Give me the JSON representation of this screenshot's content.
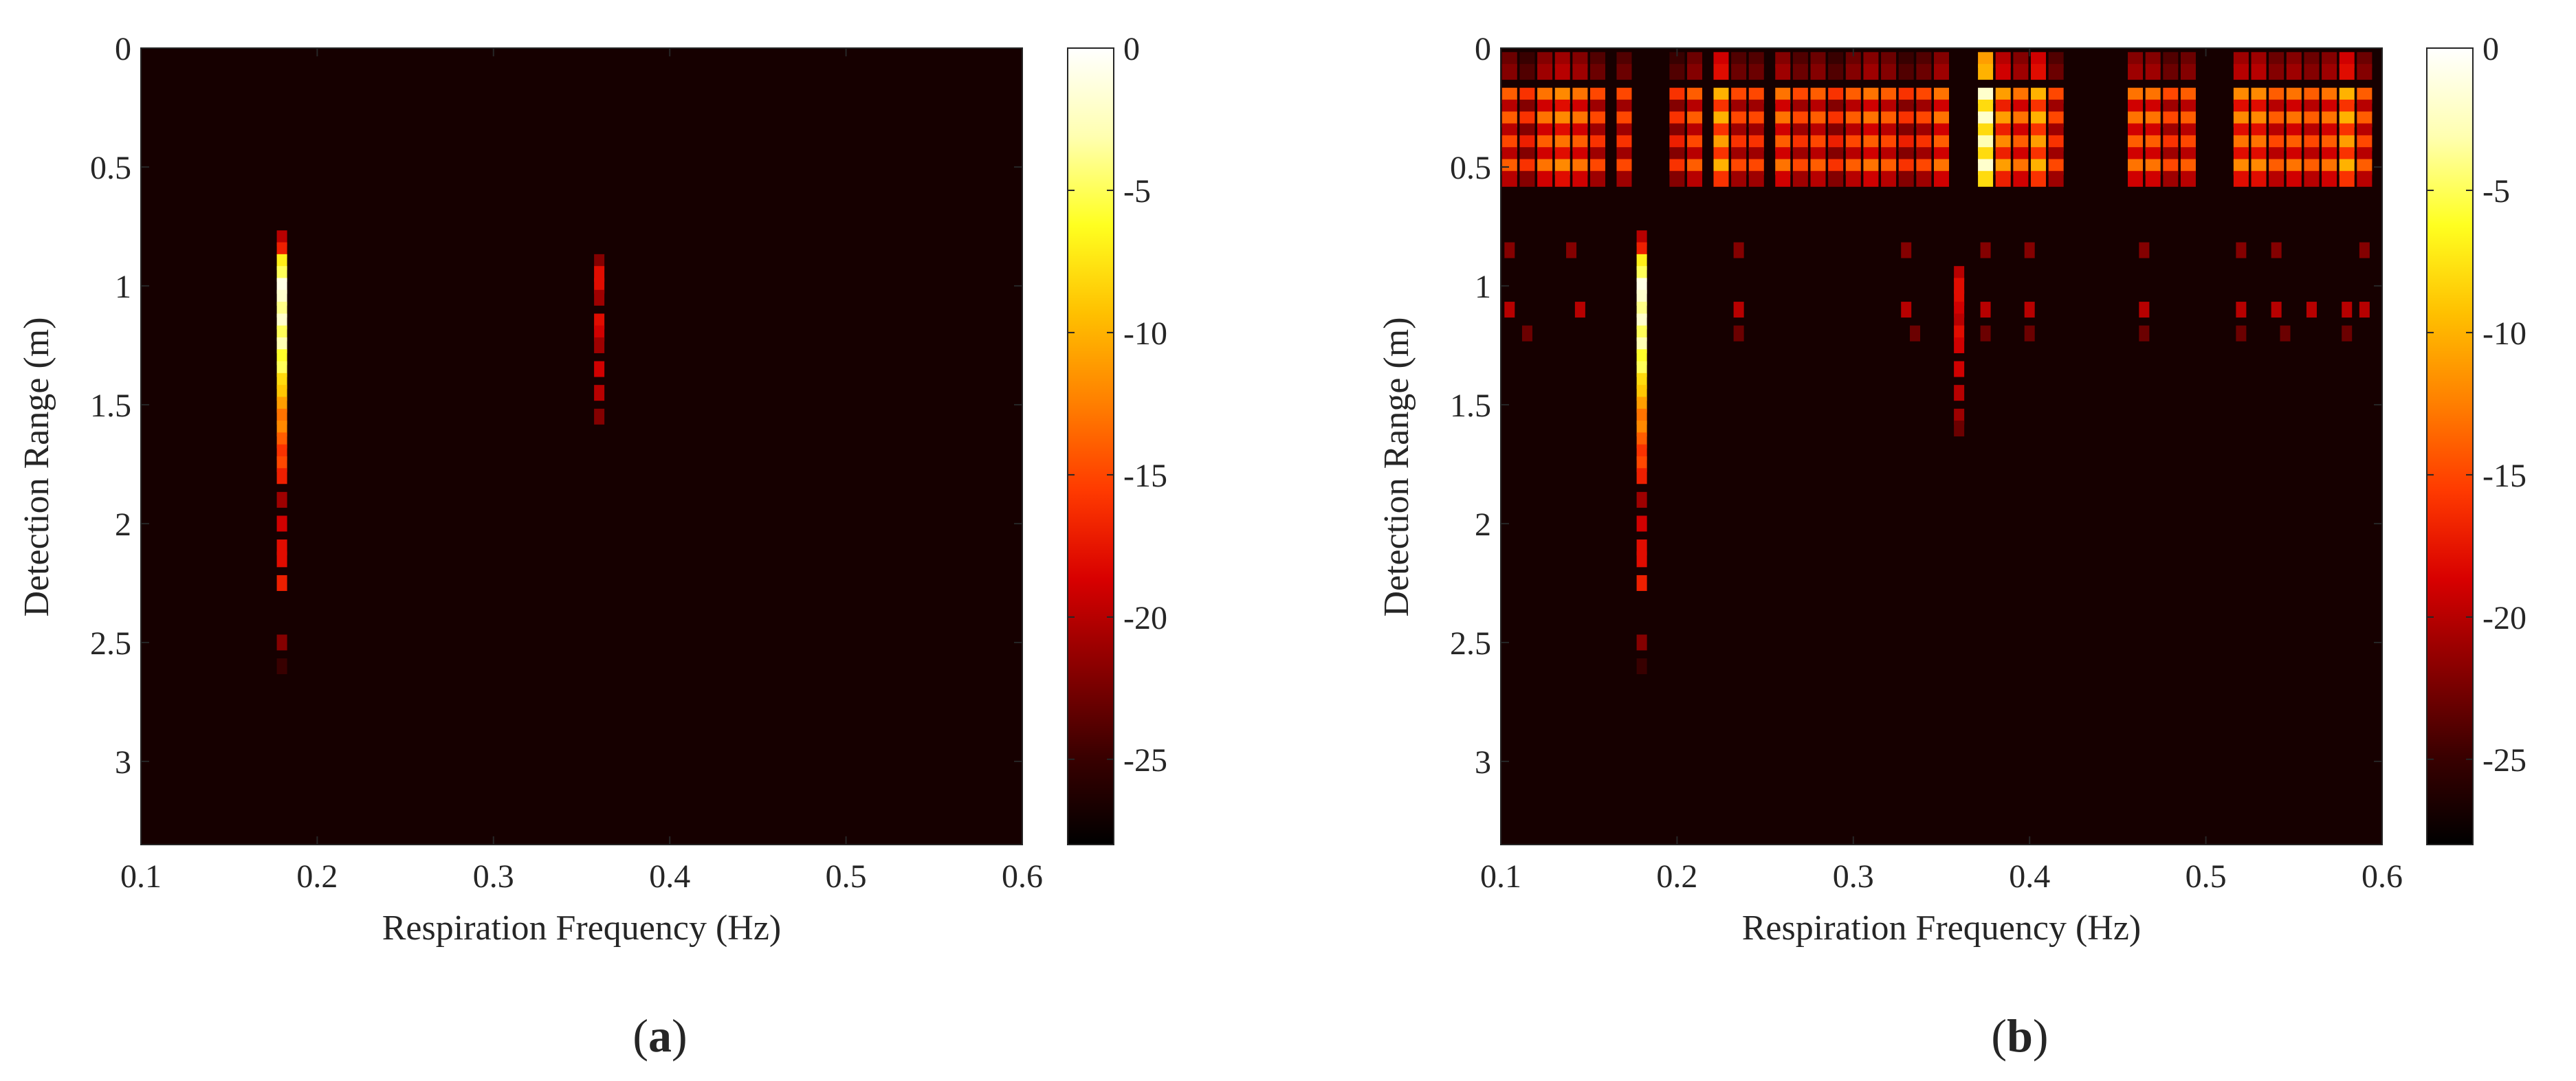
{
  "chart_data": [
    {
      "type": "heatmap",
      "panel_label": "a",
      "xlabel": "Respiration Frequency (Hz)",
      "ylabel": "Detection Range (m)",
      "xlim": [
        0.1,
        0.6
      ],
      "ylim": [
        0,
        3.35
      ],
      "xticks": [
        0.1,
        0.2,
        0.3,
        0.4,
        0.5,
        0.6
      ],
      "xtick_labels": [
        "0.1",
        "0.2",
        "0.3",
        "0.4",
        "0.5",
        "0.6"
      ],
      "yticks": [
        0,
        0.5,
        1,
        1.5,
        2,
        2.5,
        3
      ],
      "ytick_labels": [
        "0",
        "0.5",
        "1",
        "1.5",
        "2",
        "2.5",
        "3"
      ],
      "colorbar": {
        "range": [
          -28,
          0
        ],
        "ticks": [
          0,
          -5,
          -10,
          -15,
          -20,
          -25
        ],
        "tick_labels": [
          "0",
          "-5",
          "-10",
          "-15",
          "-20",
          "-25"
        ],
        "colormap": [
          "#000000",
          "#3a0000",
          "#8a0000",
          "#d80000",
          "#ff3a00",
          "#ff8000",
          "#ffc000",
          "#ffff20",
          "#ffffb0",
          "#ffffff"
        ]
      },
      "background_db": -28,
      "columns": [
        {
          "freq": 0.18,
          "ranges": [
            0.8,
            0.85,
            0.9,
            0.95,
            1.0,
            1.05,
            1.1,
            1.15,
            1.2,
            1.25,
            1.3,
            1.35,
            1.4,
            1.45,
            1.5,
            1.55,
            1.6,
            1.65,
            1.7,
            1.75,
            1.8,
            1.9,
            2.0,
            2.1,
            2.15,
            2.25,
            2.5,
            2.6
          ],
          "values_db": [
            -20,
            -17,
            -7,
            -5,
            -1,
            -2,
            -4,
            -2,
            -5,
            -3,
            -6,
            -5,
            -8,
            -9,
            -11,
            -13,
            -12,
            -14,
            -16,
            -15,
            -17,
            -21,
            -19,
            -18,
            -18,
            -17,
            -22,
            -25
          ]
        },
        {
          "freq": 0.36,
          "ranges": [
            0.9,
            0.95,
            1.0,
            1.05,
            1.15,
            1.2,
            1.25,
            1.35,
            1.45,
            1.55
          ],
          "values_db": [
            -22,
            -18,
            -18,
            -21,
            -18,
            -19,
            -21,
            -19,
            -20,
            -22
          ]
        }
      ]
    },
    {
      "type": "heatmap",
      "panel_label": "b",
      "xlabel": "Respiration Frequency (Hz)",
      "ylabel": "Detection Range (m)",
      "xlim": [
        0.1,
        0.6
      ],
      "ylim": [
        0,
        3.35
      ],
      "xticks": [
        0.1,
        0.2,
        0.3,
        0.4,
        0.5,
        0.6
      ],
      "xtick_labels": [
        "0.1",
        "0.2",
        "0.3",
        "0.4",
        "0.5",
        "0.6"
      ],
      "yticks": [
        0,
        0.5,
        1,
        1.5,
        2,
        2.5,
        3
      ],
      "ytick_labels": [
        "0",
        "0.5",
        "1",
        "1.5",
        "2",
        "2.5",
        "3"
      ],
      "colorbar": {
        "range": [
          -28,
          0
        ],
        "ticks": [
          0,
          -5,
          -10,
          -15,
          -20,
          -25
        ],
        "tick_labels": [
          "0",
          "-5",
          "-10",
          "-15",
          "-20",
          "-25"
        ],
        "colormap": [
          "#000000",
          "#3a0000",
          "#8a0000",
          "#d80000",
          "#ff3a00",
          "#ff8000",
          "#ffc000",
          "#ffff20",
          "#ffffb0",
          "#ffffff"
        ]
      },
      "background_db": -28,
      "clutter_band": {
        "ranges": [
          0.05,
          0.1,
          0.2,
          0.25,
          0.3,
          0.35,
          0.4,
          0.45,
          0.5,
          0.55
        ],
        "row_db": [
          -25,
          -24,
          -16,
          -22,
          -16,
          -22,
          -17,
          -22,
          -16,
          -22
        ],
        "freqs": [
          0.105,
          0.115,
          0.125,
          0.135,
          0.145,
          0.155,
          0.17,
          0.2,
          0.21,
          0.225,
          0.235,
          0.245,
          0.26,
          0.27,
          0.28,
          0.29,
          0.3,
          0.31,
          0.32,
          0.33,
          0.34,
          0.35,
          0.375,
          0.385,
          0.395,
          0.405,
          0.415,
          0.46,
          0.47,
          0.48,
          0.49,
          0.52,
          0.53,
          0.54,
          0.55,
          0.56,
          0.57,
          0.58,
          0.59
        ],
        "col_offset_db": [
          2,
          0,
          3,
          4,
          3,
          1,
          1,
          0,
          2,
          6,
          1,
          1,
          3,
          1,
          2,
          0,
          2,
          3,
          2,
          0,
          1,
          3,
          14,
          5,
          3,
          6,
          1,
          3,
          3,
          1,
          2,
          4,
          4,
          2,
          3,
          2,
          3,
          6,
          2
        ]
      },
      "sparse_rows": [
        {
          "range": 0.85,
          "db": -22,
          "freqs": [
            0.105,
            0.14,
            0.235,
            0.33,
            0.375,
            0.4,
            0.465,
            0.52,
            0.54,
            0.59
          ]
        },
        {
          "range": 1.1,
          "db": -20,
          "freqs": [
            0.105,
            0.145,
            0.235,
            0.33,
            0.375,
            0.4,
            0.465,
            0.52,
            0.54,
            0.56,
            0.58,
            0.59
          ]
        },
        {
          "range": 1.2,
          "db": -23,
          "freqs": [
            0.115,
            0.235,
            0.335,
            0.375,
            0.4,
            0.465,
            0.52,
            0.545,
            0.58
          ]
        }
      ],
      "columns": [
        {
          "freq": 0.18,
          "ranges": [
            0.8,
            0.85,
            0.9,
            0.95,
            1.0,
            1.05,
            1.1,
            1.15,
            1.2,
            1.25,
            1.3,
            1.35,
            1.4,
            1.45,
            1.5,
            1.55,
            1.6,
            1.65,
            1.7,
            1.75,
            1.8,
            1.9,
            2.0,
            2.1,
            2.15,
            2.25,
            2.5,
            2.6
          ],
          "values_db": [
            -20,
            -17,
            -7,
            -5,
            -1,
            -2,
            -4,
            -2,
            -5,
            -3,
            -6,
            -5,
            -8,
            -9,
            -11,
            -13,
            -12,
            -14,
            -16,
            -15,
            -17,
            -21,
            -19,
            -18,
            -18,
            -17,
            -22,
            -25
          ]
        },
        {
          "freq": 0.36,
          "ranges": [
            0.95,
            1.0,
            1.05,
            1.1,
            1.15,
            1.2,
            1.25,
            1.35,
            1.45,
            1.55,
            1.6
          ],
          "values_db": [
            -20,
            -18,
            -18,
            -19,
            -20,
            -18,
            -19,
            -19,
            -20,
            -21,
            -23
          ]
        }
      ]
    }
  ]
}
